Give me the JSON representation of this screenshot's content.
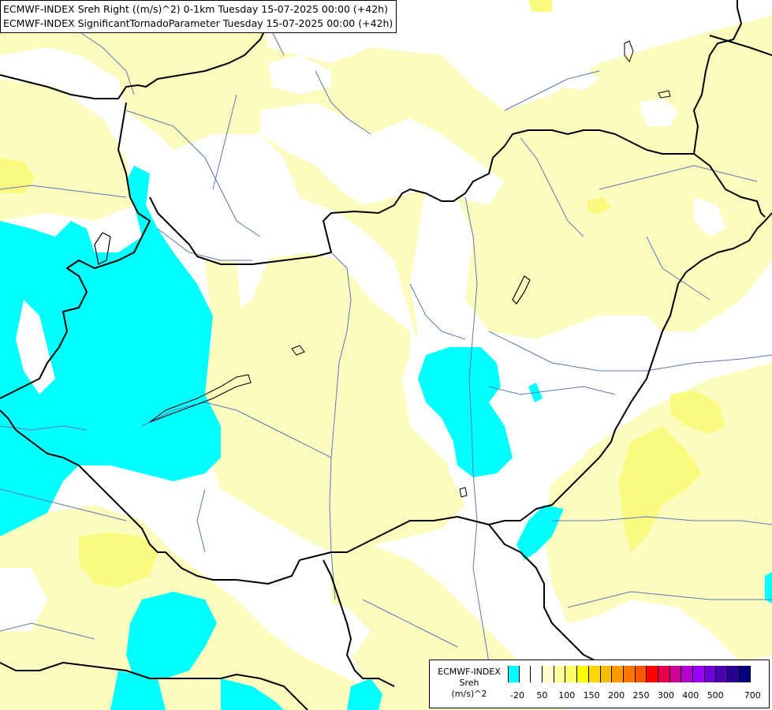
{
  "title": {
    "line1": "ECMWF-INDEX Sreh Right ((m/s)^2) 0-1km Tuesday 15-07-2025 00:00 (+42h)",
    "line2": "ECMWF-INDEX SignificantTornadoParameter Tuesday 15-07-2025 00:00 (+42h)"
  },
  "legend": {
    "title_line1": "ECMWF-INDEX",
    "title_line2": "Sreh",
    "title_line3": "(m/s)^2",
    "colors": [
      "#00ffff",
      "#ffffff",
      "#ffffff",
      "#fefecc",
      "#fdfd9a",
      "#fcfc66",
      "#fafa00",
      "#ffd700",
      "#ffbb00",
      "#ff9a00",
      "#ff7700",
      "#ff5500",
      "#ff0000",
      "#e8004b",
      "#cc0099",
      "#b300cc",
      "#9900ff",
      "#6f00d8",
      "#4b00b0",
      "#2a0090",
      "#000080"
    ],
    "ticks": [
      "-20",
      "50",
      "100",
      "150",
      "200",
      "250",
      "300",
      "400",
      "500",
      "700"
    ],
    "tick_positions": [
      0,
      2,
      3,
      4,
      5,
      6,
      7,
      8,
      9,
      10
    ]
  },
  "colors": {
    "cyan": "#00ffff",
    "light_yellow": "#fcfcbe",
    "yellow": "#fafa80",
    "border": "#000000",
    "river": "#5a78b4"
  }
}
